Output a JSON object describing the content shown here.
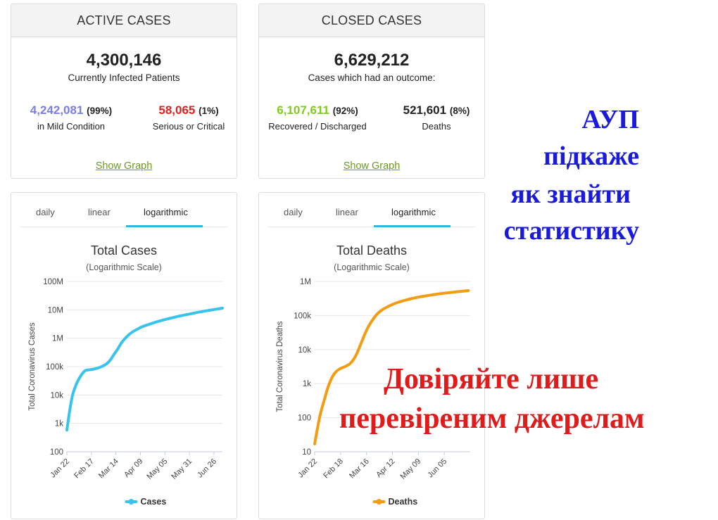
{
  "active": {
    "title": "ACTIVE CASES",
    "total": "4,300,146",
    "total_label": "Currently Infected Patients",
    "mild": {
      "value": "4,242,081",
      "pct": "(99%)",
      "label": "in Mild Condition",
      "color": "#7b7de3"
    },
    "serious": {
      "value": "58,065",
      "pct": "(1%)",
      "label": "Serious or Critical",
      "color": "#e02020"
    },
    "link": "Show Graph"
  },
  "closed": {
    "title": "CLOSED CASES",
    "total": "6,629,212",
    "total_label": "Cases which had an outcome:",
    "recovered": {
      "value": "6,107,611",
      "pct": "(92%)",
      "label": "Recovered / Discharged",
      "color": "#82c91e"
    },
    "deaths": {
      "value": "521,601",
      "pct": "(8%)",
      "label": "Deaths",
      "color": "#222222"
    },
    "link": "Show Graph"
  },
  "cases_chart": {
    "tabs": [
      "daily",
      "linear",
      "logarithmic"
    ],
    "active_tab": "logarithmic"
  },
  "deaths_chart": {
    "tabs": [
      "daily",
      "linear",
      "logarithmic"
    ],
    "active_tab": "logarithmic"
  },
  "chart_data": [
    {
      "type": "line",
      "title": "Total Cases",
      "subtitle": "(Logarithmic Scale)",
      "ylabel": "Total Coronavirus Cases",
      "xlabel": "",
      "y_scale": "log",
      "ylim": [
        100,
        100000000
      ],
      "y_ticks": [
        100,
        1000,
        10000,
        100000,
        1000000,
        10000000,
        100000000
      ],
      "y_tick_labels": [
        "100",
        "1k",
        "10k",
        "100k",
        "1M",
        "10M",
        "100M"
      ],
      "x_tick_labels": [
        "Jan 22",
        "Feb 17",
        "Mar 14",
        "Apr 09",
        "May 05",
        "May 31",
        "Jun 26"
      ],
      "x_days": [
        0,
        26,
        52,
        78,
        104,
        130,
        156
      ],
      "legend": "bottom",
      "series": [
        {
          "name": "Cases",
          "color": "#38c3ec",
          "x": [
            0,
            3,
            6,
            10,
            14,
            17,
            20,
            26,
            30,
            36,
            42,
            46,
            50,
            54,
            58,
            62,
            66,
            70,
            75,
            80,
            86,
            92,
            100,
            110,
            120,
            130,
            140,
            150,
            158,
            165
          ],
          "y": [
            580,
            2800,
            9800,
            24000,
            43000,
            60000,
            73500,
            79000,
            84000,
            97000,
            125000,
            170000,
            270000,
            420000,
            700000,
            1000000,
            1350000,
            1700000,
            2100000,
            2550000,
            3000000,
            3500000,
            4200000,
            5100000,
            6100000,
            7100000,
            8300000,
            9500000,
            10500000,
            11500000
          ]
        }
      ]
    },
    {
      "type": "line",
      "title": "Total Deaths",
      "subtitle": "(Logarithmic Scale)",
      "ylabel": "Total Coronavirus Deaths",
      "xlabel": "",
      "y_scale": "log",
      "ylim": [
        10,
        1000000
      ],
      "y_ticks": [
        10,
        100,
        1000,
        10000,
        100000,
        1000000
      ],
      "y_tick_labels": [
        "10",
        "100",
        "1k",
        "10k",
        "100k",
        "1M"
      ],
      "x_tick_labels": [
        "Jan 22",
        "Feb 18",
        "Mar 16",
        "Apr 12",
        "May 09",
        "Jun 05"
      ],
      "x_days": [
        0,
        27,
        54,
        81,
        108,
        135
      ],
      "legend": "bottom",
      "series": [
        {
          "name": "Deaths",
          "color": "#f39c12",
          "x": [
            0,
            3,
            6,
            10,
            14,
            18,
            22,
            27,
            32,
            37,
            42,
            46,
            50,
            55,
            60,
            65,
            70,
            75,
            80,
            86,
            92,
            100,
            110,
            120,
            130,
            140,
            150,
            160
          ],
          "y": [
            17,
            50,
            130,
            330,
            800,
            1500,
            2200,
            2800,
            3200,
            3900,
            6000,
            10500,
            20000,
            42000,
            72000,
            110000,
            145000,
            175000,
            205000,
            240000,
            270000,
            310000,
            355000,
            395000,
            435000,
            470000,
            505000,
            540000
          ]
        }
      ]
    }
  ],
  "overlay_blue": [
    "АУП",
    "підкаже",
    "як знайти",
    "статистику"
  ],
  "overlay_red": [
    "Довіряйте лише",
    "перевіреним джерелам"
  ]
}
